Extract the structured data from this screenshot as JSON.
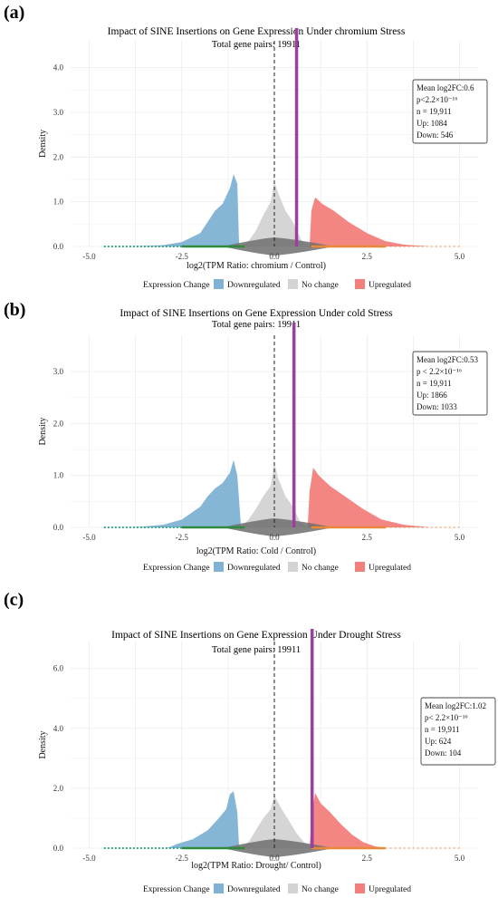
{
  "panels": [
    {
      "letter": "(a)",
      "title": "Impact of SINE Insertions on Gene Expression Under chromium Stress",
      "subtitle": "Total gene pairs: 19911",
      "xlabel": "log2(TPM Ratio: chromium / Control)",
      "ylabel": "Density",
      "legend_title": "Expression Change",
      "legend": [
        "Downregulated",
        "No change",
        "Upregulated"
      ],
      "stats": [
        "Mean log2FC:0.6",
        "p<2.2×10⁻¹⁶",
        "n = 19,911",
        "Up: 1084",
        "Down: 546"
      ]
    },
    {
      "letter": "(b)",
      "title": "Impact of SINE Insertions on Gene Expression Under cold Stress",
      "subtitle": "Total gene pairs: 19911",
      "xlabel": "log2(TPM Ratio: Cold / Control)",
      "ylabel": "Density",
      "legend_title": "Expression Change",
      "legend": [
        "Downregulated",
        "No change",
        "Upregulated"
      ],
      "stats": [
        "Mean log2FC:0.53",
        "p <  2.2×10⁻¹⁶",
        "n = 19,911",
        "Up: 1866",
        "Down: 1033"
      ]
    },
    {
      "letter": "(c)",
      "title": "Impact of SINE Insertions on Gene Expression Under Drought Stress",
      "subtitle": "Total gene pairs: 19911",
      "xlabel": "log2(TPM Ratio: Drought/ Control)",
      "ylabel": "Density",
      "legend_title": "Expression Change",
      "legend": [
        "Downregulated",
        "No change",
        "Upregulated"
      ],
      "stats": [
        "Mean log2FC:1.02",
        "p< 2.2×10⁻¹⁶",
        "n = 19,911",
        "Up: 624",
        "Down: 104"
      ]
    }
  ],
  "colors": {
    "down": "#7fb2d4",
    "nochange": "#d3d3d3",
    "up": "#f27f7b",
    "mean_line": "#9b3fa0",
    "rug_down": "#3aa58f",
    "rug_mid": "#2e8b3e",
    "rug_up": "#e8893a",
    "violin": "#6e6e6e"
  },
  "chart_data": [
    {
      "type": "area",
      "title": "Impact of SINE Insertions on Gene Expression Under chromium Stress",
      "subtitle": "Total gene pairs: 19911",
      "xlabel": "log2(TPM Ratio: chromium / Control)",
      "ylabel": "Density",
      "xlim": [
        -5.5,
        5.5
      ],
      "ylim": [
        0,
        4.6
      ],
      "xticks": [
        "-5.0",
        "-2.5",
        "0.0",
        "2.5",
        "5.0"
      ],
      "xtick_values": [
        -5,
        -2.5,
        0,
        2.5,
        5
      ],
      "yticks": [
        "0.0",
        "1.0",
        "2.0",
        "3.0",
        "4.0"
      ],
      "ytick_values": [
        0,
        1,
        2,
        3,
        4
      ],
      "mean_log2fc": 0.6,
      "zero_line": 0,
      "series": [
        {
          "name": "Downregulated",
          "x": [
            -3.8,
            -3.0,
            -2.5,
            -2.0,
            -1.8,
            -1.6,
            -1.4,
            -1.2,
            -1.1,
            -1.0,
            -0.95
          ],
          "y": [
            0,
            0.03,
            0.1,
            0.3,
            0.55,
            0.8,
            0.95,
            1.3,
            1.62,
            1.4,
            0
          ]
        },
        {
          "name": "No change",
          "x": [
            -0.95,
            -0.7,
            -0.5,
            -0.3,
            -0.1,
            0.0,
            0.1,
            0.3,
            0.5,
            0.75,
            0.95
          ],
          "y": [
            0,
            0.12,
            0.35,
            0.7,
            1.0,
            1.45,
            1.2,
            0.8,
            0.55,
            0.1,
            0
          ]
        },
        {
          "name": "Upregulated",
          "x": [
            0.95,
            1.0,
            1.1,
            1.3,
            1.6,
            2.0,
            2.5,
            3.0,
            3.5,
            4.2
          ],
          "y": [
            0,
            0.8,
            1.1,
            0.95,
            0.8,
            0.55,
            0.3,
            0.12,
            0.04,
            0
          ]
        }
      ]
    },
    {
      "type": "area",
      "title": "Impact of SINE Insertions on Gene Expression Under cold Stress",
      "subtitle": "Total gene pairs: 19911",
      "xlabel": "log2(TPM Ratio: Cold / Control)",
      "ylabel": "Density",
      "xlim": [
        -5.5,
        5.5
      ],
      "ylim": [
        0,
        3.7
      ],
      "xticks": [
        "-5.0",
        "-2.5",
        "0.0",
        "2.5",
        "5.0"
      ],
      "xtick_values": [
        -5,
        -2.5,
        0,
        2.5,
        5
      ],
      "yticks": [
        "0.0",
        "1.0",
        "2.0",
        "3.0"
      ],
      "ytick_values": [
        0,
        1,
        2,
        3
      ],
      "mean_log2fc": 0.53,
      "zero_line": 0,
      "series": [
        {
          "name": "Downregulated",
          "x": [
            -3.8,
            -3.0,
            -2.5,
            -2.0,
            -1.8,
            -1.6,
            -1.4,
            -1.2,
            -1.1,
            -1.0,
            -0.9
          ],
          "y": [
            0,
            0.05,
            0.15,
            0.4,
            0.6,
            0.75,
            0.85,
            1.05,
            1.3,
            1.0,
            0
          ]
        },
        {
          "name": "No change",
          "x": [
            -0.9,
            -0.7,
            -0.5,
            -0.3,
            -0.1,
            0.0,
            0.1,
            0.3,
            0.5,
            0.7,
            0.9
          ],
          "y": [
            0,
            0.15,
            0.35,
            0.6,
            0.8,
            1.25,
            0.95,
            0.6,
            0.4,
            0.1,
            0
          ]
        },
        {
          "name": "Upregulated",
          "x": [
            0.9,
            0.95,
            1.05,
            1.2,
            1.5,
            1.9,
            2.4,
            2.9,
            3.5,
            4.2
          ],
          "y": [
            0,
            0.7,
            1.15,
            1.0,
            0.8,
            0.6,
            0.35,
            0.15,
            0.05,
            0
          ]
        }
      ]
    },
    {
      "type": "area",
      "title": "Impact of SINE Insertions on Gene Expression Under Drought Stress",
      "subtitle": "Total gene pairs: 19911",
      "xlabel": "log2(TPM Ratio: Drought/ Control)",
      "ylabel": "Density",
      "xlim": [
        -5.5,
        5.5
      ],
      "ylim": [
        0,
        6.9
      ],
      "xticks": [
        "-5.0",
        "-2.5",
        "0.0",
        "2.5",
        "5.0"
      ],
      "xtick_values": [
        -5,
        -2.5,
        0,
        2.5,
        5
      ],
      "yticks": [
        "0.0",
        "2.0",
        "4.0",
        "6.0"
      ],
      "ytick_values": [
        0,
        2,
        4,
        6
      ],
      "mean_log2fc": 1.02,
      "zero_line": 0,
      "series": [
        {
          "name": "Downregulated",
          "x": [
            -2.9,
            -2.6,
            -2.2,
            -1.8,
            -1.5,
            -1.3,
            -1.2,
            -1.1,
            -1.0,
            -0.95
          ],
          "y": [
            0,
            0.15,
            0.3,
            0.6,
            1.0,
            1.3,
            1.8,
            1.9,
            1.2,
            0
          ]
        },
        {
          "name": "No change",
          "x": [
            -0.95,
            -0.7,
            -0.5,
            -0.3,
            -0.1,
            0.0,
            0.2,
            0.4,
            0.6,
            0.8,
            0.95
          ],
          "y": [
            0,
            0.2,
            0.6,
            1.0,
            1.3,
            1.75,
            1.3,
            0.9,
            0.5,
            0.2,
            0
          ]
        },
        {
          "name": "Upregulated",
          "x": [
            0.95,
            1.0,
            1.1,
            1.25,
            1.5,
            1.8,
            2.1,
            2.4,
            2.7,
            3.0
          ],
          "y": [
            0,
            1.0,
            1.85,
            1.5,
            1.2,
            0.8,
            0.45,
            0.2,
            0.07,
            0
          ]
        }
      ]
    }
  ]
}
